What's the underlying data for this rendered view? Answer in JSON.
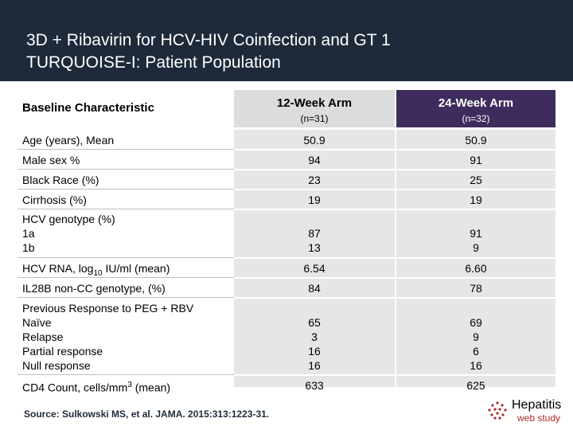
{
  "slide": {
    "title": "3D + Ribavirin for HCV-HIV Coinfection and GT 1\nTURQUOISE-I: Patient Population",
    "column_header": "Baseline Characteristic",
    "arms": [
      {
        "name": "12-Week Arm",
        "n": "(n=31)"
      },
      {
        "name": "24-Week Arm",
        "n": "(n=32)"
      }
    ],
    "rows": [
      {
        "label": "Age (years), Mean",
        "v1": "50.9",
        "v2": "50.9"
      },
      {
        "label": "Male sex %",
        "v1": "94",
        "v2": "91"
      },
      {
        "label": "Black Race (%)",
        "v1": "23",
        "v2": "25"
      },
      {
        "label": "Cirrhosis (%)",
        "v1": "19",
        "v2": "19"
      },
      {
        "label": "HCV genotype (%)\n   1a\n   1b",
        "v1": "87\n13",
        "v2": "91\n9"
      },
      {
        "label_pre": "HCV RNA, log",
        "label_sub": "10",
        "label_post": " IU/ml (mean)",
        "v1": "6.54",
        "v2": "6.60"
      },
      {
        "label": "IL28B non-CC genotype, (%)",
        "v1": "84",
        "v2": "78"
      },
      {
        "label": "Previous Response to PEG + RBV\n   Naïve\n   Relapse\n   Partial response\n   Null response",
        "v1": "65\n3\n16\n16",
        "v2": "69\n9\n6\n16"
      },
      {
        "label_pre": "CD4 Count, cells/mm",
        "label_sup": "3",
        "label_post": "  (mean)",
        "v1": "633",
        "v2": "625"
      }
    ],
    "source": "Source: Sulkowski MS, et al. JAMA. 2015:313:1223-31.",
    "logo": {
      "line1": "Hepatitis",
      "line2": "web study",
      "icon": "hepatitis-logo-icon"
    }
  },
  "colors": {
    "header_bg": "#1e2a3a",
    "arm2_bg": "#3e2d5c",
    "cell_bg": "#e6e6e6",
    "logo_red": "#b12a2a"
  }
}
